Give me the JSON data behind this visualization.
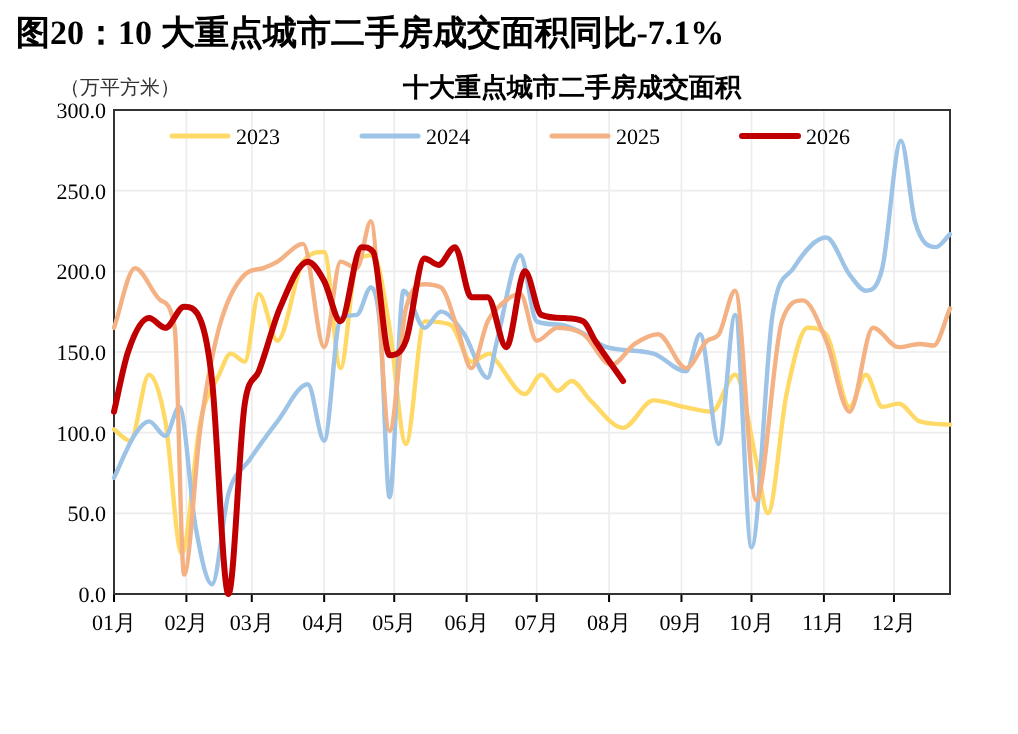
{
  "chart_data": {
    "type": "line",
    "title": "图20：10 大重点城市二手房成交面积同比-7.1%",
    "subtitle": "十大重点城市二手房成交面积",
    "ylabel": "（万平方米）",
    "xlim": [
      "--01-01",
      "--12-25"
    ],
    "xticks": [
      {
        "value": "--01-01",
        "label": "01月"
      },
      {
        "value": "--02-01",
        "label": "02月"
      },
      {
        "value": "--03-01",
        "label": "03月"
      },
      {
        "value": "--04-01",
        "label": "04月"
      },
      {
        "value": "--05-01",
        "label": "05月"
      },
      {
        "value": "--06-01",
        "label": "06月"
      },
      {
        "value": "--07-01",
        "label": "07月"
      },
      {
        "value": "--08-01",
        "label": "08月"
      },
      {
        "value": "--09-01",
        "label": "09月"
      },
      {
        "value": "--10-01",
        "label": "10月"
      },
      {
        "value": "--11-01",
        "label": "11月"
      },
      {
        "value": "--12-01",
        "label": "12月"
      }
    ],
    "ylim": [
      0,
      300
    ],
    "yticks": [
      {
        "value": 0,
        "label": "0.0"
      },
      {
        "value": 50,
        "label": "50.0"
      },
      {
        "value": 100,
        "label": "100.0"
      },
      {
        "value": 150,
        "label": "150.0"
      },
      {
        "value": 200,
        "label": "200.0"
      },
      {
        "value": 250,
        "label": "250.0"
      },
      {
        "value": 300,
        "label": "300.0"
      }
    ],
    "grid": true,
    "legend": "top",
    "marker": "none",
    "line_style": "solid",
    "series": [
      {
        "name": "2023",
        "color": "#ffd966",
        "x": [
          "--01-01",
          "--01-08",
          "--01-16",
          "--01-23",
          "--01-30",
          "--02-07",
          "--02-15",
          "--02-20",
          "--02-26",
          "--03-04",
          "--03-12",
          "--03-23",
          "--04-01",
          "--04-08",
          "--04-15",
          "--04-22",
          "--04-29",
          "--05-06",
          "--05-14",
          "--05-25",
          "--06-03",
          "--06-11",
          "--06-14",
          "--06-26",
          "--07-03",
          "--07-10",
          "--07-16",
          "--07-24",
          "--08-07",
          "--08-20",
          "--09-02",
          "--09-14",
          "--09-24",
          "--10-03",
          "--10-08",
          "--10-16",
          "--10-25",
          "--11-02",
          "--11-12",
          "--11-19",
          "--11-26",
          "--12-03",
          "--12-12",
          "--12-25"
        ],
        "values": [
          102,
          95,
          136,
          107,
          25,
          107,
          136,
          149,
          144,
          186,
          157,
          206,
          212,
          140,
          206,
          210,
          165,
          93,
          169,
          167,
          144,
          149,
          144,
          124,
          136,
          126,
          132,
          120,
          103,
          120,
          116,
          113,
          136,
          83,
          50,
          124,
          165,
          161,
          116,
          136,
          116,
          118,
          107,
          105
        ]
      },
      {
        "name": "2024",
        "color": "#9dc3e6",
        "x": [
          "--01-01",
          "--01-10",
          "--01-16",
          "--01-23",
          "--01-29",
          "--02-05",
          "--02-12",
          "--02-19",
          "--02-28",
          "--03-12",
          "--03-25",
          "--04-01",
          "--04-08",
          "--04-15",
          "--04-21",
          "--04-25",
          "--04-29",
          "--05-05",
          "--05-14",
          "--05-21",
          "--05-31",
          "--06-10",
          "--06-14",
          "--06-24",
          "--07-01",
          "--07-11",
          "--07-19",
          "--07-31",
          "--08-20",
          "--09-03",
          "--09-09",
          "--09-17",
          "--09-24",
          "--10-01",
          "--10-10",
          "--10-19",
          "--11-02",
          "--11-12",
          "--11-19",
          "--11-26",
          "--12-04",
          "--12-10",
          "--12-19",
          "--12-25"
        ],
        "values": [
          72,
          99,
          107,
          98,
          116,
          41,
          6,
          62,
          83,
          107,
          130,
          95,
          171,
          173,
          190,
          165,
          60,
          188,
          165,
          175,
          161,
          134,
          157,
          210,
          169,
          167,
          163,
          153,
          149,
          138,
          161,
          93,
          173,
          29,
          173,
          202,
          221,
          198,
          188,
          202,
          281,
          231,
          215,
          223
        ]
      },
      {
        "name": "2025",
        "color": "#f4b183",
        "x": [
          "--01-01",
          "--01-10",
          "--01-21",
          "--01-27",
          "--01-31",
          "--02-07",
          "--02-15",
          "--02-26",
          "--03-06",
          "--03-12",
          "--03-23",
          "--04-01",
          "--04-08",
          "--04-15",
          "--04-21",
          "--04-29",
          "--05-06",
          "--05-14",
          "--05-21",
          "--05-28",
          "--06-03",
          "--06-10",
          "--06-14",
          "--06-24",
          "--07-01",
          "--07-10",
          "--07-21",
          "--08-02",
          "--08-12",
          "--08-22",
          "--09-03",
          "--09-12",
          "--09-17",
          "--09-24",
          "--10-03",
          "--10-14",
          "--10-23",
          "--11-02",
          "--11-12",
          "--11-22",
          "--12-03",
          "--12-12",
          "--12-18",
          "--12-25"
        ],
        "values": [
          165,
          202,
          182,
          165,
          12,
          103,
          165,
          198,
          202,
          206,
          217,
          153,
          206,
          202,
          231,
          101,
          177,
          192,
          190,
          165,
          140,
          169,
          177,
          186,
          157,
          165,
          161,
          142,
          155,
          161,
          140,
          157,
          161,
          188,
          58,
          169,
          182,
          157,
          113,
          165,
          153,
          155,
          154,
          177
        ]
      },
      {
        "name": "2026",
        "color": "#c00000",
        "x": [
          "--01-01",
          "--01-07",
          "--01-16",
          "--01-23",
          "--01-31",
          "--02-07",
          "--02-12",
          "--02-19",
          "--02-26",
          "--03-04",
          "--03-13",
          "--03-25",
          "--04-01",
          "--04-08",
          "--04-17",
          "--04-22",
          "--04-29",
          "--05-06",
          "--05-14",
          "--05-20",
          "--05-27",
          "--06-03",
          "--06-10",
          "--06-18",
          "--06-26",
          "--07-03",
          "--07-13",
          "--07-21",
          "--07-26",
          "--08-07"
        ],
        "values": [
          113,
          150,
          171,
          165,
          178,
          170,
          132,
          0,
          118,
          138,
          177,
          206,
          194,
          169,
          215,
          212,
          148,
          157,
          208,
          204,
          215,
          184,
          184,
          153,
          200,
          173,
          171,
          169,
          157,
          132
        ]
      }
    ]
  }
}
